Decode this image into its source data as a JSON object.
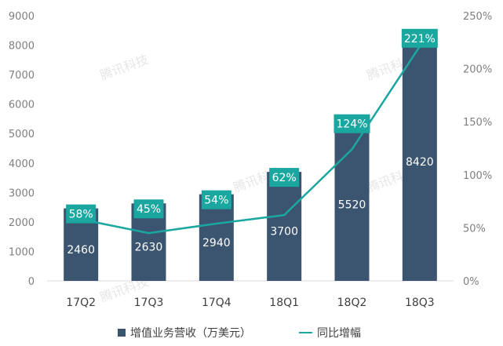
{
  "chart_data": {
    "type": "bar",
    "categories": [
      "17Q2",
      "17Q3",
      "17Q4",
      "18Q1",
      "18Q2",
      "18Q3"
    ],
    "series": [
      {
        "name": "增值业务营收（万美元）",
        "type": "bar",
        "axis": "left",
        "values": [
          2460,
          2630,
          2940,
          3700,
          5520,
          8420
        ],
        "labels": [
          "2460",
          "2630",
          "2940",
          "3700",
          "5520",
          "8420"
        ],
        "color": "#3b5570"
      },
      {
        "name": "同比增幅",
        "type": "line",
        "axis": "right",
        "values": [
          58,
          45,
          54,
          62,
          124,
          221
        ],
        "labels": [
          "58%",
          "45%",
          "54%",
          "62%",
          "124%",
          "221%"
        ],
        "color": "#1aa7a0"
      }
    ],
    "ylim_left": [
      0,
      9000
    ],
    "yticks_left": [
      "0",
      "1000",
      "2000",
      "3000",
      "4000",
      "5000",
      "6000",
      "7000",
      "8000",
      "9000"
    ],
    "ylim_right": [
      0,
      250
    ],
    "yticks_right": [
      "0%",
      "50%",
      "100%",
      "150%",
      "200%",
      "250%"
    ],
    "grid": false,
    "legend_position": "bottom",
    "label_box_color": "#1aa7a0",
    "watermark": "腾讯科技"
  }
}
